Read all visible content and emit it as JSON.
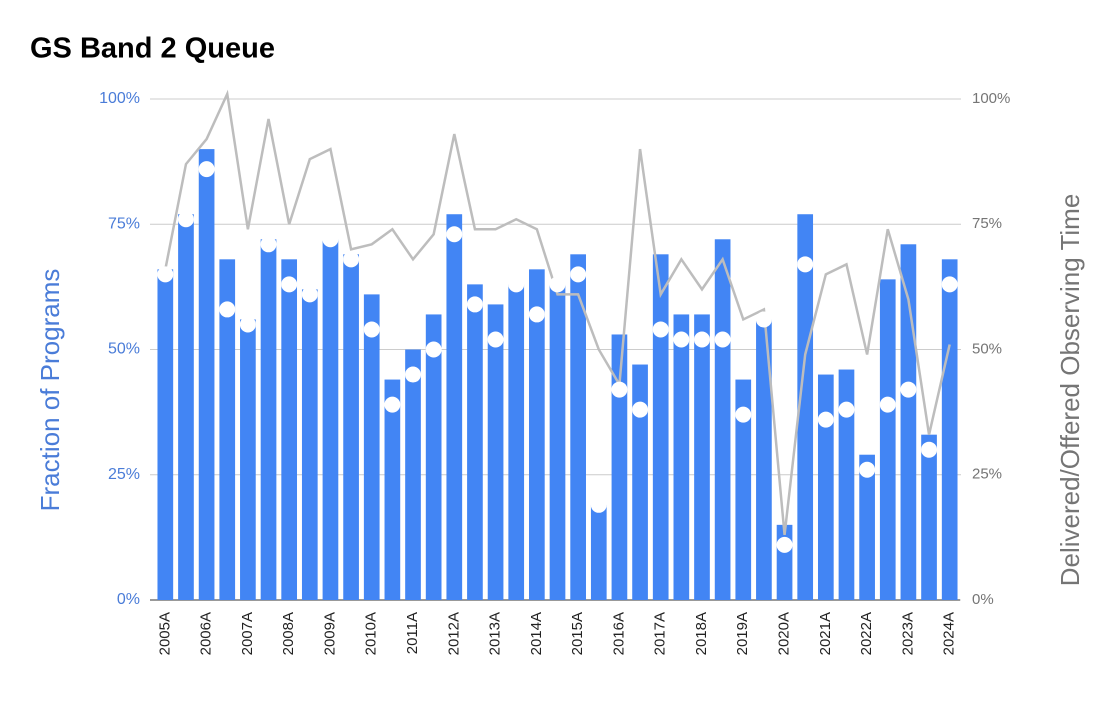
{
  "chart_data": {
    "type": "bar",
    "title": "GS Band 2 Queue",
    "y_label": "Fraction of Programs",
    "y2_label": "Delivered/Offered Observing Time",
    "categories": [
      "2005A",
      null,
      "2006A",
      null,
      "2007A",
      null,
      "2008A",
      null,
      "2009A",
      null,
      "2010A",
      null,
      "2011A",
      null,
      "2012A",
      null,
      "2013A",
      null,
      "2014A",
      null,
      "2015A",
      null,
      "2016A",
      null,
      "2017A",
      null,
      "2018A",
      null,
      "2019A",
      null,
      "2020A",
      null,
      "2021A",
      null,
      "2022A",
      null,
      "2023A",
      null,
      "2024A"
    ],
    "series": [
      {
        "type": "bar",
        "color": "#4285f4",
        "values": [
          66,
          77,
          90,
          68,
          56,
          72,
          68,
          62,
          72,
          69,
          61,
          44,
          50,
          57,
          77,
          63,
          59,
          63,
          66,
          63,
          69,
          19,
          53,
          47,
          69,
          57,
          57,
          72,
          44,
          56,
          15,
          77,
          45,
          46,
          29,
          64,
          71,
          33,
          68
        ]
      },
      {
        "type": "scatter",
        "color": "#ffffff",
        "values": [
          65,
          76,
          86,
          58,
          55,
          71,
          63,
          61,
          72,
          68,
          54,
          39,
          45,
          50,
          73,
          59,
          52,
          63,
          57,
          63,
          65,
          19,
          42,
          38,
          54,
          52,
          52,
          52,
          37,
          56,
          11,
          67,
          36,
          38,
          26,
          39,
          42,
          30,
          63
        ]
      },
      {
        "type": "line",
        "axis": "y2",
        "color": "#bdbdbd",
        "values": [
          66,
          87,
          92,
          101,
          74,
          96,
          75,
          88,
          90,
          70,
          71,
          74,
          68,
          73,
          93,
          74,
          74,
          76,
          74,
          61,
          61,
          50,
          43,
          90,
          61,
          68,
          62,
          68,
          56,
          58,
          13,
          49,
          65,
          67,
          49,
          74,
          60,
          33,
          51
        ]
      }
    ],
    "ylim": [
      0,
      100
    ],
    "yticks": [
      {
        "value": 0,
        "label": "0%"
      },
      {
        "value": 25,
        "label": "25%"
      },
      {
        "value": 50,
        "label": "50%"
      },
      {
        "value": 75,
        "label": "75%"
      },
      {
        "value": 100,
        "label": "100%"
      }
    ],
    "y2lim": [
      0,
      100
    ],
    "y2ticks": [
      {
        "value": 0,
        "label": "0%"
      },
      {
        "value": 25,
        "label": "25%"
      },
      {
        "value": 50,
        "label": "50%"
      },
      {
        "value": 75,
        "label": "75%"
      },
      {
        "value": 100,
        "label": "100%"
      }
    ],
    "grid": true
  }
}
